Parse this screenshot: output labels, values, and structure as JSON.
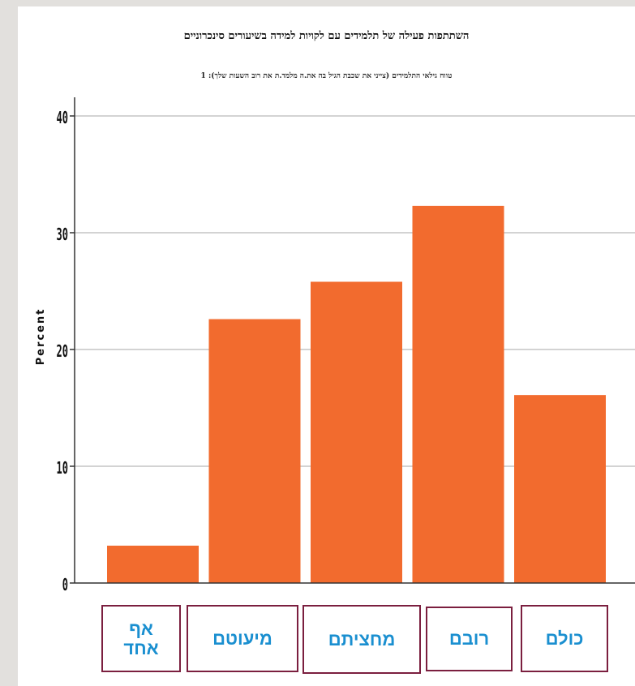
{
  "chart_data": {
    "type": "bar",
    "title": "השתתפות פעילה של תלמידים עם לקויות למידה בשיעורים סינכרוניים",
    "subtitle": "טווח גילאי התלמידים (צייני את שכבת הגיל בה את.ה מלמד.ת את רוב השעות שלך): 1",
    "ylabel": "Percent",
    "xlabel": "",
    "ylim": [
      0,
      42
    ],
    "yticks": [
      0,
      10,
      20,
      30,
      40
    ],
    "grid": true,
    "categories": [
      "אף אחד",
      "מיעוטם",
      "מחציתם",
      "רובם",
      "כולם"
    ],
    "values": [
      3.2,
      22.6,
      25.8,
      32.3,
      16.1
    ],
    "colors": {
      "bar": "#f26b2e",
      "grid": "#d3d3d3",
      "axis": "#333333",
      "category_border": "#7b1f3f",
      "category_text": "#1a8fd0"
    }
  }
}
